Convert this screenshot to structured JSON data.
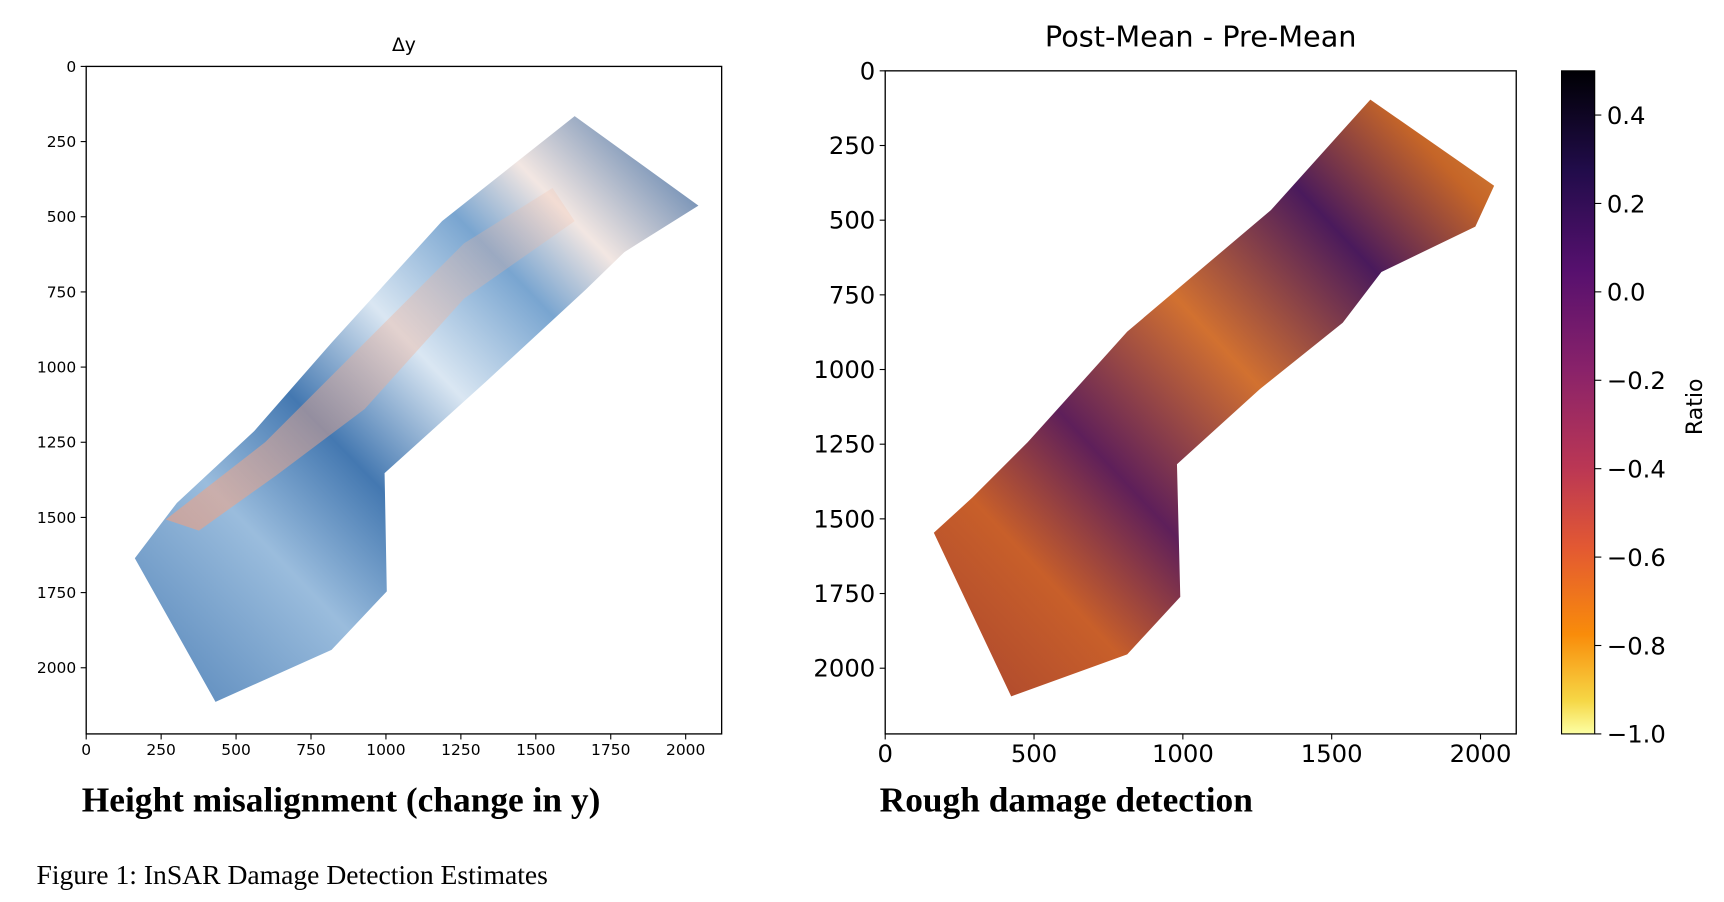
{
  "chart_data": [
    {
      "type": "image",
      "title": "Δy",
      "xlim": [
        0,
        2120
      ],
      "ylim": [
        2220,
        0
      ],
      "xticks": [
        0,
        250,
        500,
        750,
        1000,
        1250,
        1500,
        1750,
        2000
      ],
      "yticks": [
        0,
        250,
        500,
        750,
        1000,
        1250,
        1500,
        1750,
        2000
      ],
      "caption": "Height misalignment (change in y)"
    },
    {
      "type": "image",
      "title": "Post-Mean - Pre-Mean",
      "xlim": [
        0,
        2120
      ],
      "ylim": [
        2220,
        0
      ],
      "xticks": [
        0,
        500,
        1000,
        1500,
        2000
      ],
      "yticks": [
        0,
        250,
        500,
        750,
        1000,
        1250,
        1500,
        1750,
        2000
      ],
      "caption": "Rough damage detection",
      "colorbar": {
        "label": "Ratio",
        "lim": [
          -1.0,
          0.5
        ],
        "ticks": [
          0.4,
          0.2,
          {
            "value": 0,
            "label": "0.0"
          },
          {
            "value": -0.2,
            "label": "−0.2"
          },
          {
            "value": -0.4,
            "label": "−0.4"
          },
          {
            "value": -0.6,
            "label": "−0.6"
          },
          {
            "value": -0.8,
            "label": "−0.8"
          },
          {
            "value": -1.0,
            "label": "−1.0"
          }
        ]
      }
    }
  ],
  "figure_caption": "Figure 1: InSAR Damage Detection Estimates"
}
